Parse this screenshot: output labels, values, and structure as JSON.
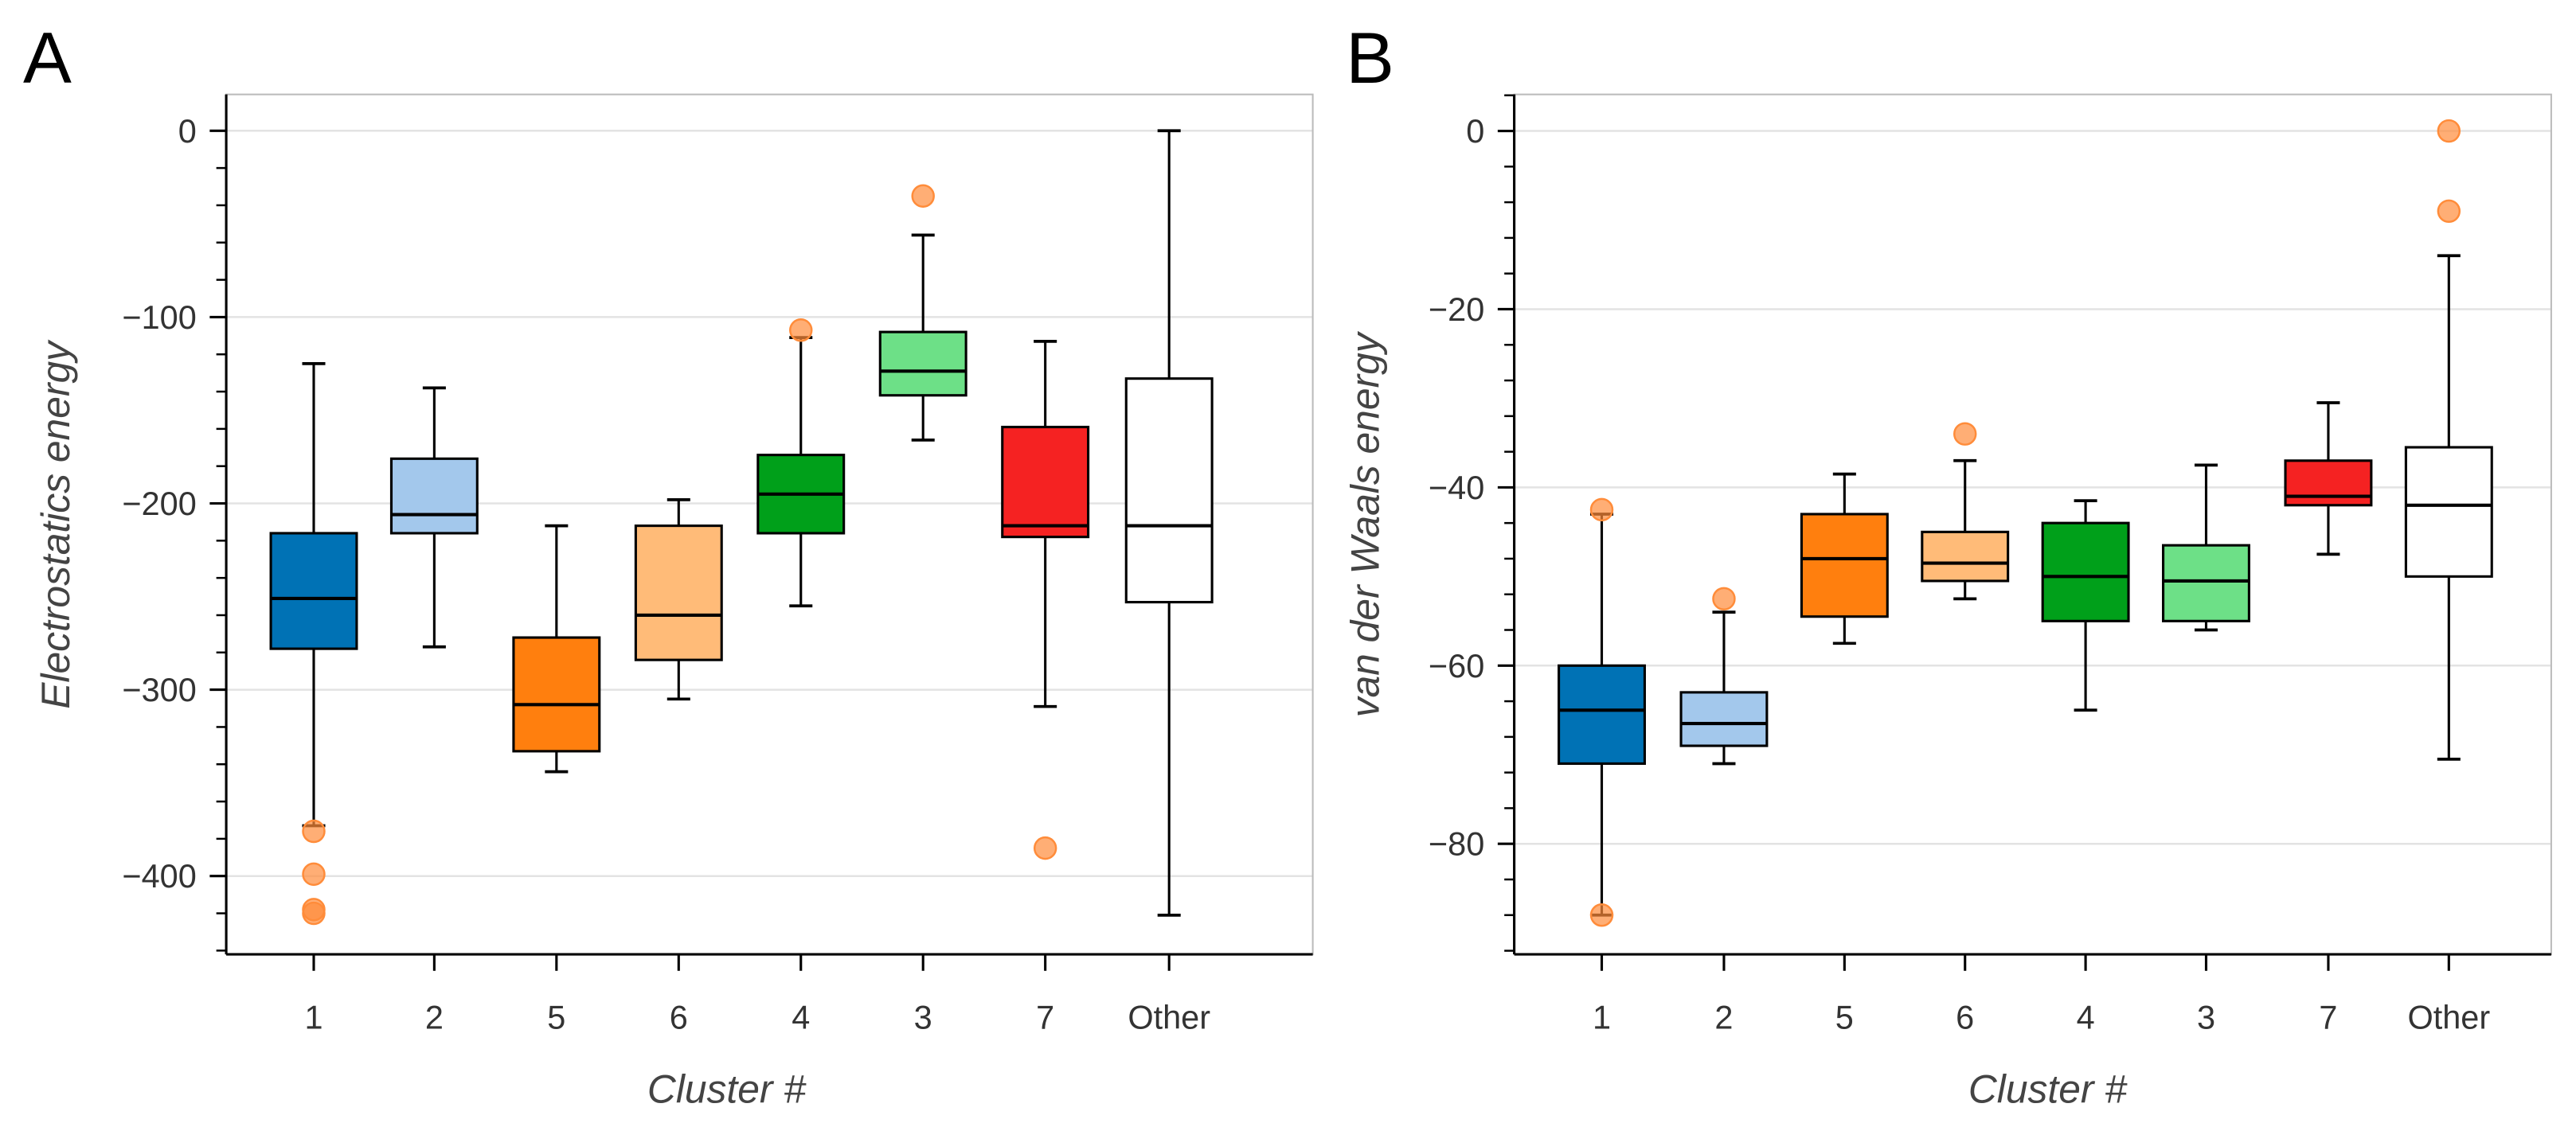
{
  "chart_data": [
    {
      "panel": "A",
      "type": "box",
      "xlabel": "Cluster #",
      "ylabel": "Electrostatics energy",
      "ylim": [
        -442,
        19.5
      ],
      "yticks": [
        0,
        -100,
        -200,
        -300,
        -400
      ],
      "ytick_labels": [
        "0",
        "−100",
        "−200",
        "−300",
        "−400"
      ],
      "minor_step": 20,
      "grid": true,
      "categories": [
        "1",
        "2",
        "5",
        "6",
        "4",
        "3",
        "7",
        "Other"
      ],
      "boxes": [
        {
          "name": "1",
          "whisker_high": -125,
          "q3": -216,
          "median": -251,
          "q1": -278,
          "whisker_low": -373,
          "outliers": [
            -376,
            -399,
            -418,
            -420
          ],
          "color": "#0072b5"
        },
        {
          "name": "2",
          "whisker_high": -138,
          "q3": -176,
          "median": -206,
          "q1": -216,
          "whisker_low": -277,
          "outliers": [],
          "color": "#a3c8ec"
        },
        {
          "name": "5",
          "whisker_high": -212,
          "q3": -272,
          "median": -308,
          "q1": -333,
          "whisker_low": -344,
          "outliers": [],
          "color": "#ff7f0e"
        },
        {
          "name": "6",
          "whisker_high": -198,
          "q3": -212,
          "median": -260,
          "q1": -284,
          "whisker_low": -305,
          "outliers": [],
          "color": "#ffbb78"
        },
        {
          "name": "4",
          "whisker_high": -111,
          "q3": -174,
          "median": -195,
          "q1": -216,
          "whisker_low": -255,
          "outliers": [
            -107
          ],
          "color": "#00a01a"
        },
        {
          "name": "3",
          "whisker_high": -56,
          "q3": -108,
          "median": -129,
          "q1": -142,
          "whisker_low": -166,
          "outliers": [
            -35
          ],
          "color": "#6de087"
        },
        {
          "name": "7",
          "whisker_high": -113,
          "q3": -159,
          "median": -212,
          "q1": -218,
          "whisker_low": -309,
          "outliers": [
            -385
          ],
          "color": "#f52222"
        },
        {
          "name": "Other",
          "whisker_high": 0,
          "q3": -133,
          "median": -212,
          "q1": -253,
          "whisker_low": -421,
          "outliers": [],
          "color": "#ffffff"
        }
      ]
    },
    {
      "panel": "B",
      "type": "box",
      "xlabel": "Cluster #",
      "ylabel": "van der Waals energy",
      "ylim": [
        -92.4,
        4.1
      ],
      "yticks": [
        0,
        -20,
        -40,
        -60,
        -80
      ],
      "ytick_labels": [
        "0",
        "−20",
        "−40",
        "−60",
        "−80"
      ],
      "minor_step": 4,
      "grid": true,
      "categories": [
        "1",
        "2",
        "5",
        "6",
        "4",
        "3",
        "7",
        "Other"
      ],
      "boxes": [
        {
          "name": "1",
          "whisker_high": -43,
          "q3": -60,
          "median": -65,
          "q1": -71,
          "whisker_low": -88,
          "outliers": [
            -42.5,
            -88
          ],
          "color": "#0072b5"
        },
        {
          "name": "2",
          "whisker_high": -54,
          "q3": -63,
          "median": -66.5,
          "q1": -69,
          "whisker_low": -71,
          "outliers": [
            -52.5
          ],
          "color": "#a3c8ec"
        },
        {
          "name": "5",
          "whisker_high": -38.5,
          "q3": -43,
          "median": -48,
          "q1": -54.5,
          "whisker_low": -57.5,
          "outliers": [],
          "color": "#ff7f0e"
        },
        {
          "name": "6",
          "whisker_high": -37,
          "q3": -45,
          "median": -48.5,
          "q1": -50.5,
          "whisker_low": -52.5,
          "outliers": [
            -34
          ],
          "color": "#ffbb78"
        },
        {
          "name": "4",
          "whisker_high": -41.5,
          "q3": -44,
          "median": -50,
          "q1": -55,
          "whisker_low": -65,
          "outliers": [],
          "color": "#00a01a"
        },
        {
          "name": "3",
          "whisker_high": -37.5,
          "q3": -46.5,
          "median": -50.5,
          "q1": -55,
          "whisker_low": -56,
          "outliers": [],
          "color": "#6de087"
        },
        {
          "name": "7",
          "whisker_high": -30.5,
          "q3": -37,
          "median": -41,
          "q1": -42,
          "whisker_low": -47.5,
          "outliers": [],
          "color": "#f52222"
        },
        {
          "name": "Other",
          "whisker_high": -14,
          "q3": -35.5,
          "median": -42,
          "q1": -50,
          "whisker_low": -70.5,
          "outliers": [
            0,
            -9
          ],
          "color": "#ffffff"
        }
      ]
    }
  ],
  "outlier_color": "#ff8c3a"
}
